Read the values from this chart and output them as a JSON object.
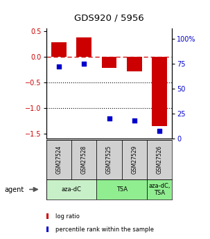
{
  "title": "GDS920 / 5956",
  "samples": [
    "GSM27524",
    "GSM27528",
    "GSM27525",
    "GSM27529",
    "GSM27526"
  ],
  "log_ratios": [
    0.28,
    0.38,
    -0.22,
    -0.28,
    -1.35
  ],
  "percentile_ranks": [
    72,
    75,
    20,
    18,
    8
  ],
  "bar_color": "#cc0000",
  "dot_color": "#0000cc",
  "ylim_left": [
    -1.6,
    0.55
  ],
  "ylim_right": [
    0,
    110
  ],
  "groups": [
    {
      "label": "aza-dC",
      "start": 0,
      "end": 2,
      "color": "#c8f0c8"
    },
    {
      "label": "TSA",
      "start": 2,
      "end": 4,
      "color": "#90ee90"
    },
    {
      "label": "aza-dC,\nTSA",
      "start": 4,
      "end": 5,
      "color": "#90ee90"
    }
  ],
  "agent_label": "agent",
  "legend_items": [
    {
      "color": "#cc0000",
      "label": "log ratio"
    },
    {
      "color": "#0000cc",
      "label": "percentile rank within the sample"
    }
  ],
  "yticks_left": [
    0.5,
    0.0,
    -0.5,
    -1.0,
    -1.5
  ],
  "yticks_right": [
    100,
    75,
    50,
    25,
    0
  ],
  "dotted_hlines": [
    -0.5,
    -1.0
  ]
}
